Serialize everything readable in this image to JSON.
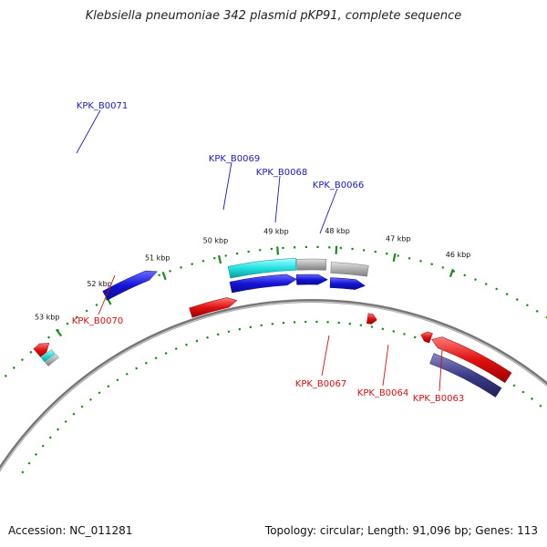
{
  "title": "Klebsiella pneumoniae 342 plasmid pKP91, complete sequence",
  "footer": {
    "accession": "Accession: NC_011281",
    "summary": "Topology: circular; Length: 91,096 bp; Genes: 113"
  },
  "colors": {
    "forward_gene": "#1515d8",
    "reverse_gene": "#e01010",
    "highlight_gene": "#22e0e0",
    "other_gene": "#a8a8a8",
    "purple_gene": "#3c3c88",
    "backbone": "#777777",
    "gc_ticks": "#1a8a1a",
    "label_forward": "#1a1ab8",
    "label_reverse": "#cc1111"
  },
  "kbp_labels": [
    "53 kbp",
    "52 kbp",
    "51 kbp",
    "50 kbp",
    "49 kbp",
    "48 kbp",
    "47 kbp",
    "46 kbp"
  ],
  "genes_forward": [
    "KPK_B0071",
    "KPK_B0069",
    "KPK_B0068",
    "KPK_B0066"
  ],
  "genes_reverse": [
    "KPK_B0070",
    "KPK_B0067",
    "KPK_B0064",
    "KPK_B0063"
  ]
}
